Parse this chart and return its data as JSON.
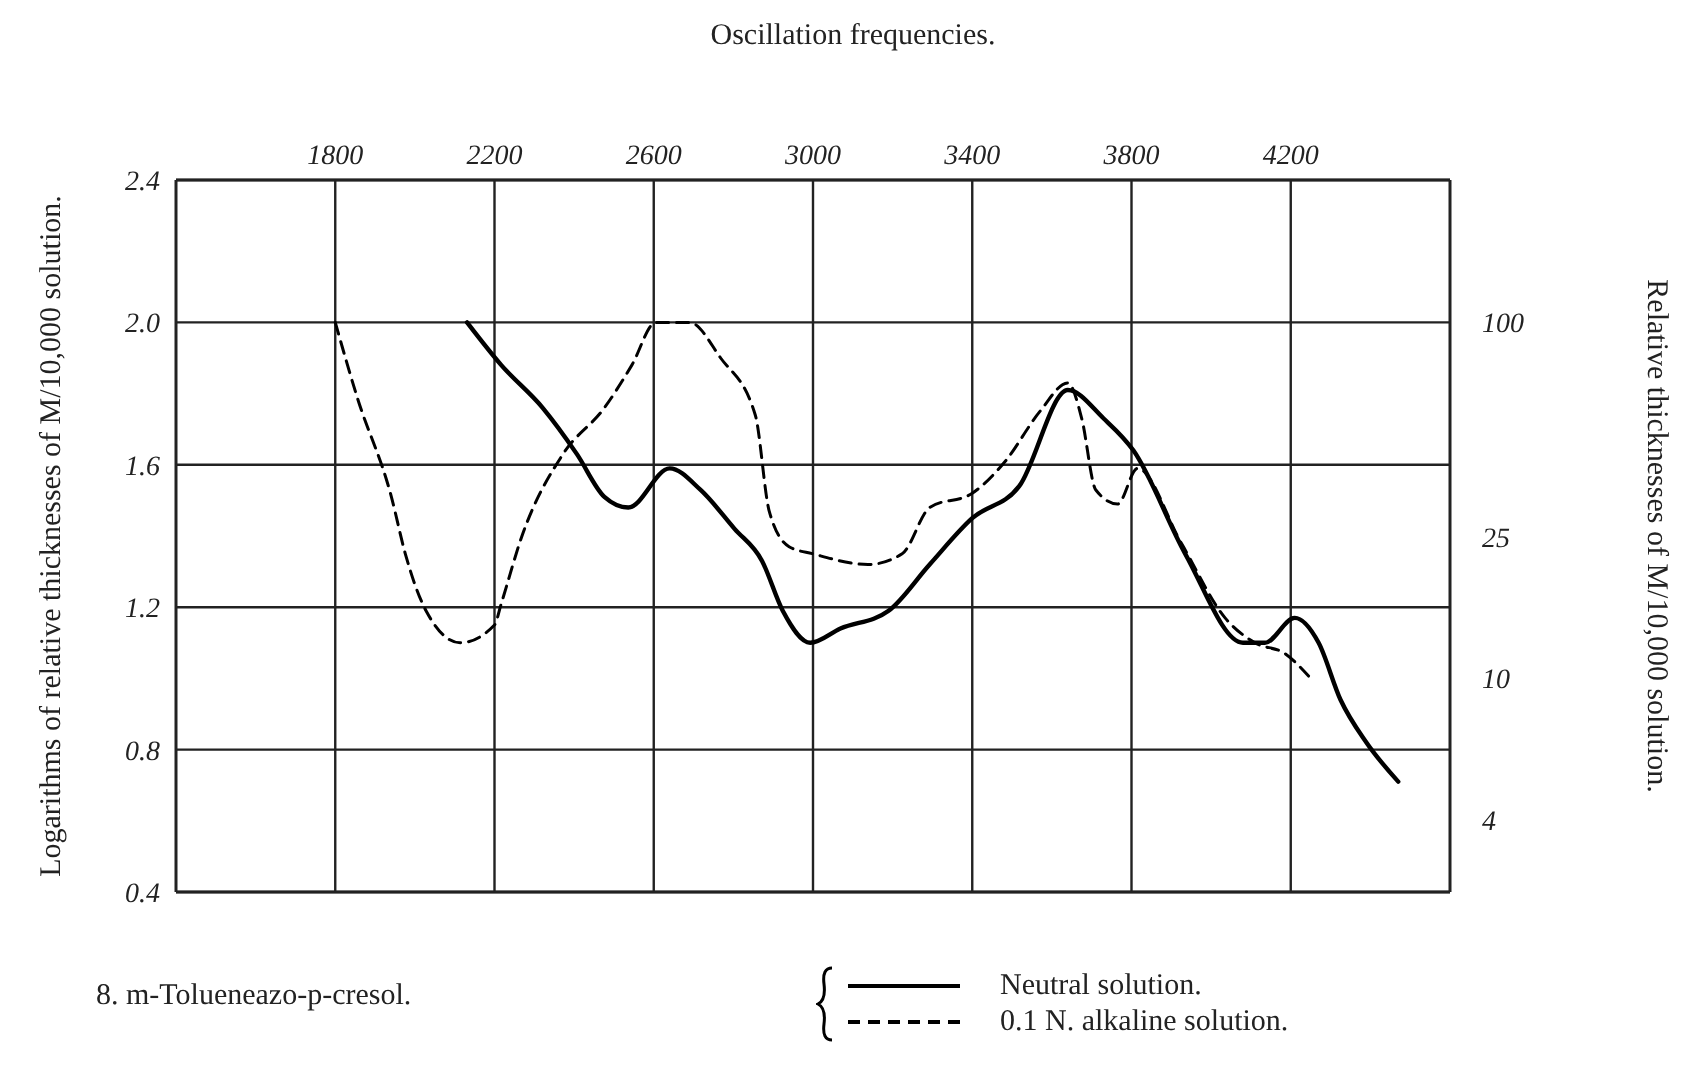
{
  "chart_data": {
    "type": "line",
    "title": "Oscillation frequencies.",
    "ylabel": "Logarithms of relative thicknesses of M/10,000 solution.",
    "y2label": "Relative thicknesses of M/10,000 solution.",
    "annotations": [
      "8.  m-Tolueneazo-p-cresol."
    ],
    "xlim": [
      1400,
      4600
    ],
    "xticks": [
      1800,
      2200,
      2600,
      3000,
      3400,
      3800,
      4200
    ],
    "ylim": [
      0.4,
      2.4
    ],
    "yticks": [
      {
        "value": 0.4,
        "label": "0.4"
      },
      {
        "value": 0.8,
        "label": "0.8"
      },
      {
        "value": 1.2,
        "label": "1.2"
      },
      {
        "value": 1.6,
        "label": "1.6"
      },
      {
        "value": 2.0,
        "label": "2.0"
      },
      {
        "value": 2.4,
        "label": "2.4"
      }
    ],
    "y2lim": [
      2.512,
      251.2
    ],
    "y2ticks": [
      4,
      10,
      25,
      100
    ],
    "log": "y2",
    "grid": true,
    "legend": "bottom",
    "marker": "none",
    "series": [
      {
        "name": "Neutral solution.",
        "color": "#000000",
        "line_style": "solid",
        "x": [
          2131,
          2217,
          2321,
          2407,
          2476,
          2536,
          2640,
          2717,
          2803,
          2872,
          2924,
          2993,
          3069,
          3190,
          3293,
          3400,
          3518,
          3640,
          3730,
          3805,
          3935,
          4080,
          4135,
          4210,
          4270,
          4325,
          4390,
          4470
        ],
        "values": [
          2.0,
          1.88,
          1.76,
          1.63,
          1.51,
          1.48,
          1.59,
          1.53,
          1.42,
          1.33,
          1.19,
          1.1,
          1.14,
          1.19,
          1.32,
          1.45,
          1.54,
          1.81,
          1.73,
          1.64,
          1.35,
          1.1,
          1.1,
          1.17,
          1.1,
          0.94,
          0.82,
          0.71
        ]
      },
      {
        "name": "0.1 N. alkaline solution.",
        "color": "#000000",
        "line_style": "dashed",
        "x": [
          1800,
          1855,
          1941,
          1976,
          2028,
          2114,
          2200,
          2217,
          2269,
          2372,
          2476,
          2545,
          2605,
          2690,
          2768,
          2855,
          2890,
          2940,
          3000,
          3138,
          3224,
          3293,
          3400,
          3483,
          3570,
          3640,
          3675,
          3710,
          3765,
          3815,
          3925,
          4035,
          4110,
          4185,
          4250
        ],
        "values": [
          2.0,
          1.79,
          1.51,
          1.35,
          1.19,
          1.1,
          1.15,
          1.21,
          1.4,
          1.63,
          1.76,
          1.88,
          2.0,
          2.0,
          1.9,
          1.74,
          1.47,
          1.37,
          1.35,
          1.32,
          1.35,
          1.48,
          1.52,
          1.61,
          1.75,
          1.83,
          1.73,
          1.53,
          1.49,
          1.59,
          1.38,
          1.17,
          1.1,
          1.07,
          1.0
        ]
      }
    ]
  }
}
